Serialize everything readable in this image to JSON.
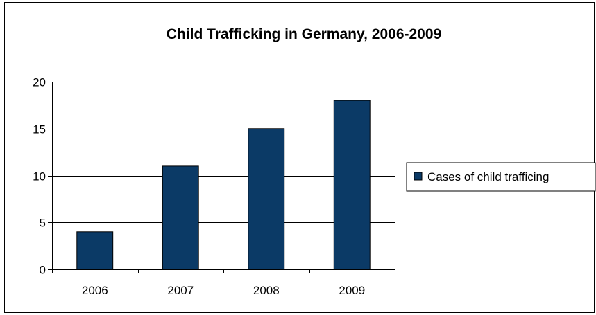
{
  "chart_data": {
    "type": "bar",
    "title": "Child Trafficking in Germany, 2006-2009",
    "xlabel": "",
    "ylabel": "",
    "categories": [
      "2006",
      "2007",
      "2008",
      "2009"
    ],
    "series": [
      {
        "name": "Cases of child trafficing",
        "values": [
          4,
          11,
          15,
          18
        ],
        "color": "#0B3A66"
      }
    ],
    "ylim": [
      0,
      20
    ],
    "yticks": [
      "0",
      "5",
      "10",
      "15",
      "20"
    ],
    "grid": true,
    "legend_position": "right"
  }
}
